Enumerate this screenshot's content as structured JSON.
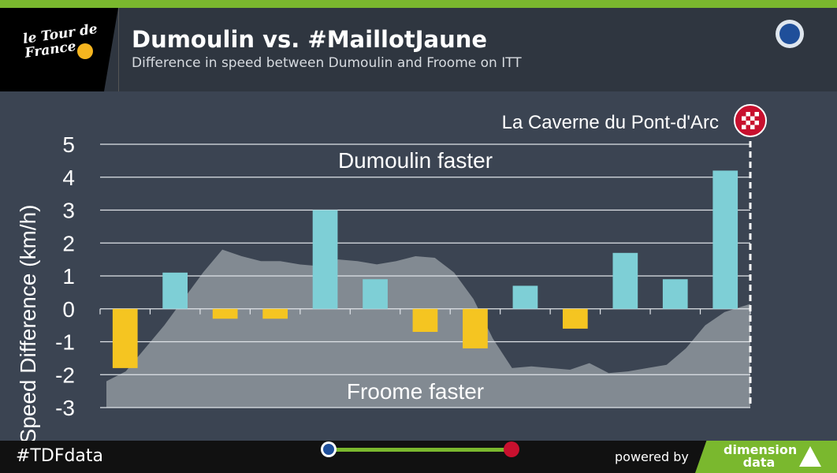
{
  "header": {
    "title": "Dumoulin vs. #MaillotJaune",
    "subtitle": "Difference in speed between Dumoulin and Froome on ITT",
    "logo_text": "le Tour de France"
  },
  "footer": {
    "hashtag": "#TDFdata",
    "powered_by": "powered by",
    "brand": "dimension data"
  },
  "colors": {
    "positive": "#7ecfd6",
    "negative": "#f5c521",
    "profile": "#8f969e",
    "accent": "#7ab82e",
    "finish": "#c8102e"
  },
  "chart_data": {
    "type": "bar",
    "ylabel": "Speed Difference (km/h)",
    "ylim": [
      -3,
      5
    ],
    "yticks": [
      5,
      4,
      3,
      2,
      1,
      0,
      -1,
      -2,
      -3
    ],
    "grid": true,
    "values": [
      -1.8,
      1.1,
      -0.3,
      -0.3,
      3.0,
      0.9,
      -0.7,
      -1.2,
      0.7,
      -0.6,
      1.7,
      0.9,
      4.2
    ],
    "annotations": {
      "top": "Dumoulin faster",
      "bottom": "Froome faster",
      "finish": "La Caverne du Pont-d'Arc"
    },
    "elevation_profile": [
      [
        0.0,
        -2.2
      ],
      [
        0.03,
        -1.9
      ],
      [
        0.06,
        -1.2
      ],
      [
        0.09,
        -0.5
      ],
      [
        0.12,
        0.3
      ],
      [
        0.15,
        1.1
      ],
      [
        0.18,
        1.8
      ],
      [
        0.21,
        1.6
      ],
      [
        0.24,
        1.45
      ],
      [
        0.27,
        1.45
      ],
      [
        0.3,
        1.35
      ],
      [
        0.33,
        1.3
      ],
      [
        0.36,
        1.5
      ],
      [
        0.39,
        1.45
      ],
      [
        0.42,
        1.35
      ],
      [
        0.45,
        1.45
      ],
      [
        0.48,
        1.6
      ],
      [
        0.51,
        1.55
      ],
      [
        0.54,
        1.1
      ],
      [
        0.57,
        0.3
      ],
      [
        0.6,
        -0.9
      ],
      [
        0.63,
        -1.8
      ],
      [
        0.66,
        -1.75
      ],
      [
        0.69,
        -1.8
      ],
      [
        0.72,
        -1.85
      ],
      [
        0.75,
        -1.65
      ],
      [
        0.78,
        -1.95
      ],
      [
        0.81,
        -1.9
      ],
      [
        0.84,
        -1.8
      ],
      [
        0.87,
        -1.7
      ],
      [
        0.9,
        -1.2
      ],
      [
        0.93,
        -0.5
      ],
      [
        0.96,
        -0.1
      ],
      [
        1.0,
        0.15
      ]
    ]
  }
}
